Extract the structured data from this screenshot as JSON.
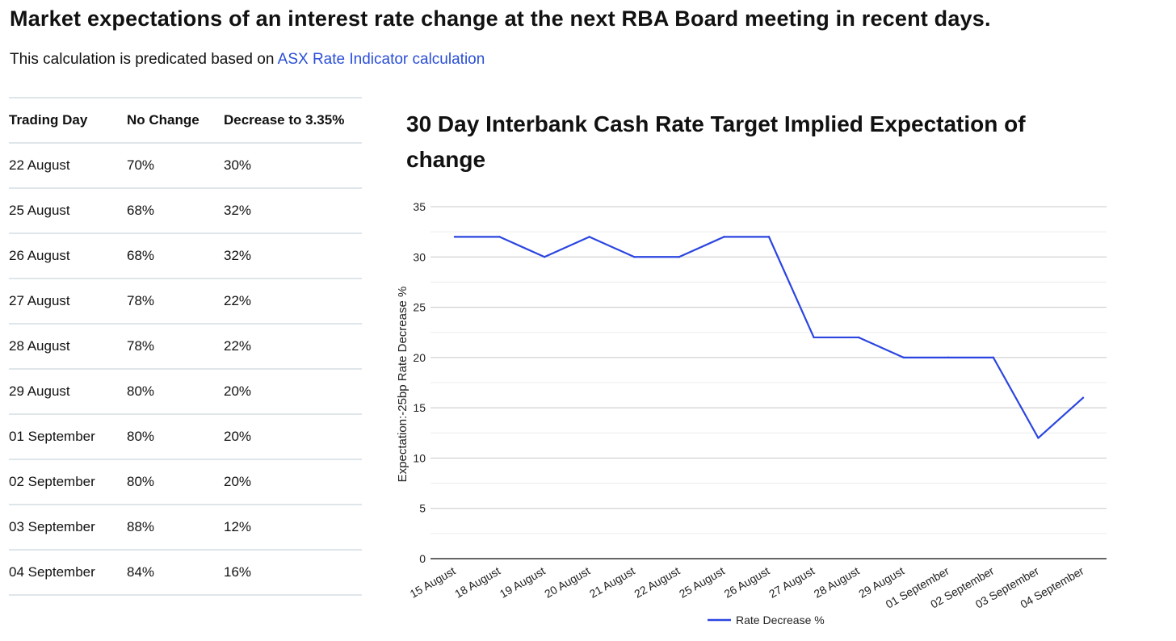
{
  "header": {
    "title": "Market expectations of an interest rate change at the next RBA Board meeting in recent days.",
    "intro_text": "This calculation is predicated based on ",
    "intro_link": "ASX Rate Indicator calculation"
  },
  "table": {
    "headers": [
      "Trading Day",
      "No Change",
      "Decrease to 3.35%"
    ],
    "rows": [
      [
        "22 August",
        "70%",
        "30%"
      ],
      [
        "25 August",
        "68%",
        "32%"
      ],
      [
        "26 August",
        "68%",
        "32%"
      ],
      [
        "27 August",
        "78%",
        "22%"
      ],
      [
        "28 August",
        "78%",
        "22%"
      ],
      [
        "29 August",
        "80%",
        "20%"
      ],
      [
        "01 September",
        "80%",
        "20%"
      ],
      [
        "02 September",
        "80%",
        "20%"
      ],
      [
        "03 September",
        "88%",
        "12%"
      ],
      [
        "04 September",
        "84%",
        "16%"
      ]
    ]
  },
  "chart_data": {
    "type": "line",
    "title": "30 Day Interbank Cash Rate Target Implied Expectation of change",
    "xlabel": "",
    "ylabel": "Expectation:-25bp Rate Decrease %",
    "categories": [
      "15 August",
      "18 August",
      "19 August",
      "20 August",
      "21 August",
      "22 August",
      "25 August",
      "26 August",
      "27 August",
      "28 August",
      "29 August",
      "01 September",
      "02 September",
      "03 September",
      "04 September"
    ],
    "series": [
      {
        "name": "Rate Decrease %",
        "values": [
          32,
          32,
          30,
          32,
          30,
          30,
          32,
          32,
          22,
          22,
          20,
          20,
          20,
          12,
          16
        ],
        "color": "#2b45e0"
      }
    ],
    "ylim": [
      0,
      35
    ],
    "yticks": [
      0,
      5,
      10,
      15,
      20,
      25,
      30,
      35
    ],
    "grid": true,
    "minor_grid": true,
    "legend": "bottom"
  }
}
